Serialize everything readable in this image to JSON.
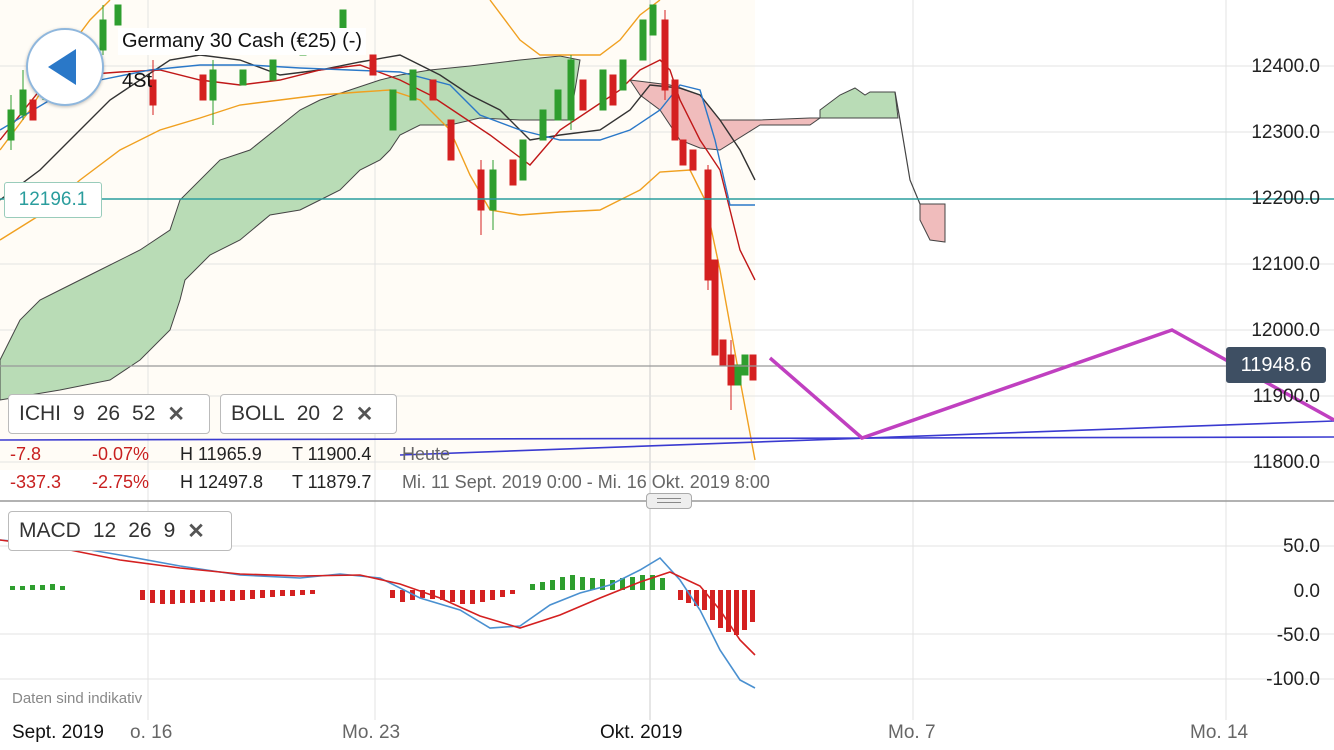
{
  "header": {
    "instrument": "Germany 30 Cash (€25) (-)",
    "interval": "4St",
    "back_icon": "back-arrow-icon"
  },
  "hline_label": "12196.1",
  "last_price": "11948.6",
  "indicators": {
    "ichi": {
      "name": "ICHI",
      "p1": "9",
      "p2": "26",
      "p3": "52"
    },
    "boll": {
      "name": "BOLL",
      "p1": "20",
      "p2": "2"
    },
    "macd": {
      "name": "MACD",
      "p1": "12",
      "p2": "26",
      "p3": "9"
    }
  },
  "stats": {
    "today": {
      "change": "-7.8",
      "pct": "-0.07%",
      "high": "H 11965.9",
      "low": "T 11900.4",
      "label": "Heute"
    },
    "range": {
      "change": "-337.3",
      "pct": "-2.75%",
      "high": "H 12497.8",
      "low": "T 11879.7",
      "label": "Mi. 11 Sept. 2019 0:00 - Mi. 16 Okt. 2019 8:00"
    }
  },
  "disclaimer": "Daten sind indikativ",
  "y_axis": [
    "12400.0",
    "12300.0",
    "12200.0",
    "12100.0",
    "12000.0",
    "11900.0",
    "11800.0"
  ],
  "macd_axis": [
    "50.0",
    "0.0",
    "-50.0",
    "-100.0"
  ],
  "x_axis": [
    "Sept. 2019",
    "o. 16",
    "Mo. 23",
    "Okt. 2019",
    "Mo. 7",
    "Mo. 14"
  ],
  "colors": {
    "up": "#2e9e2e",
    "down": "#d42020",
    "kumo_up": "#b9dcb6",
    "kumo_down": "#f0bcbc",
    "boll": "#f0a020",
    "trend": "#c040c0",
    "hline": "#2a9d9d"
  }
}
